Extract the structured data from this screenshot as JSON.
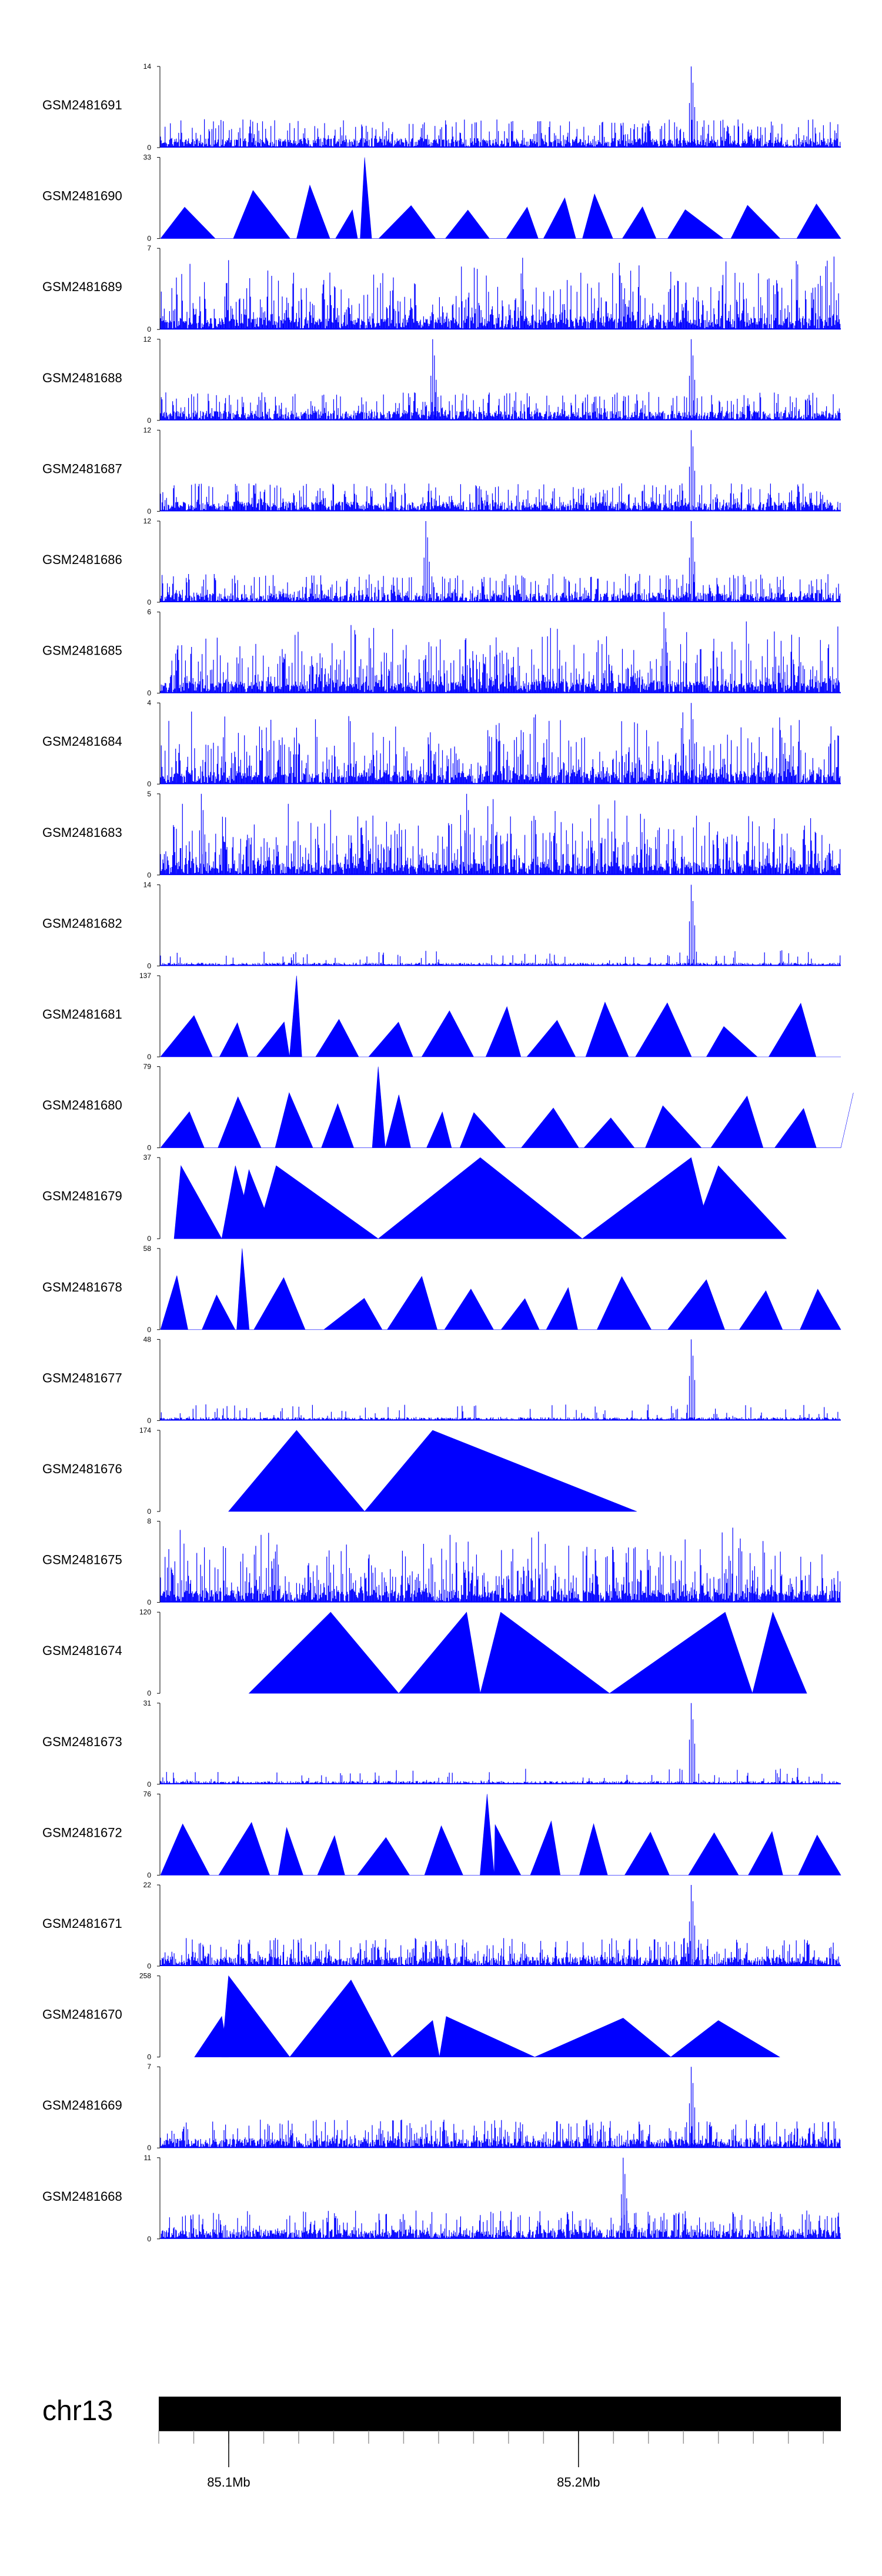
{
  "chart_data": {
    "type": "area",
    "title": "",
    "xlabel": "",
    "ylabel": "",
    "colors": {
      "signal": "#0000ff",
      "axis": "#000000",
      "ideogram": "#000000"
    },
    "tracks": [
      {
        "name": "GSM2481691",
        "ymax": "14",
        "ymin": "0",
        "pattern": "dense",
        "peak_positions": [
          0.78
        ],
        "seed": 11
      },
      {
        "name": "GSM2481690",
        "ymax": "33",
        "ymin": "0",
        "pattern": "triangles",
        "peak_positions": [
          0.3
        ],
        "seed": 12
      },
      {
        "name": "GSM2481689",
        "ymax": "7",
        "ymin": "0",
        "pattern": "noisy",
        "peak_positions": [],
        "seed": 13
      },
      {
        "name": "GSM2481688",
        "ymax": "12",
        "ymin": "0",
        "pattern": "dense",
        "peak_positions": [
          0.78,
          0.4
        ],
        "seed": 14
      },
      {
        "name": "GSM2481687",
        "ymax": "12",
        "ymin": "0",
        "pattern": "dense",
        "peak_positions": [
          0.78
        ],
        "seed": 15
      },
      {
        "name": "GSM2481686",
        "ymax": "12",
        "ymin": "0",
        "pattern": "dense",
        "peak_positions": [
          0.78,
          0.39
        ],
        "seed": 16
      },
      {
        "name": "GSM2481685",
        "ymax": "6",
        "ymin": "0",
        "pattern": "noisy",
        "peak_positions": [
          0.74
        ],
        "seed": 17
      },
      {
        "name": "GSM2481684",
        "ymax": "4",
        "ymin": "0",
        "pattern": "noisy",
        "peak_positions": [
          0.78
        ],
        "seed": 18
      },
      {
        "name": "GSM2481683",
        "ymax": "5",
        "ymin": "0",
        "pattern": "noisy",
        "peak_positions": [
          0.45,
          0.06
        ],
        "seed": 19
      },
      {
        "name": "GSM2481682",
        "ymax": "14",
        "ymin": "0",
        "pattern": "sparse",
        "peak_positions": [
          0.78
        ],
        "seed": 20
      },
      {
        "name": "GSM2481681",
        "ymax": "137",
        "ymin": "0",
        "pattern": "triangles",
        "peak_positions": [
          0.2
        ],
        "seed": 21
      },
      {
        "name": "GSM2481680",
        "ymax": "79",
        "ymin": "0",
        "pattern": "triangles",
        "peak_positions": [
          0.32
        ],
        "seed": 22
      },
      {
        "name": "GSM2481679",
        "ymax": "37",
        "ymin": "0",
        "pattern": "bigtri",
        "peak_positions": [],
        "seed": 23
      },
      {
        "name": "GSM2481678",
        "ymax": "58",
        "ymin": "0",
        "pattern": "triangles",
        "peak_positions": [
          0.12
        ],
        "seed": 24
      },
      {
        "name": "GSM2481677",
        "ymax": "48",
        "ymin": "0",
        "pattern": "sparse",
        "peak_positions": [
          0.78
        ],
        "seed": 25
      },
      {
        "name": "GSM2481676",
        "ymax": "174",
        "ymin": "0",
        "pattern": "bigtri2",
        "peak_positions": [],
        "seed": 26
      },
      {
        "name": "GSM2481675",
        "ymax": "8",
        "ymin": "0",
        "pattern": "noisy",
        "peak_positions": [],
        "seed": 27
      },
      {
        "name": "GSM2481674",
        "ymax": "120",
        "ymin": "0",
        "pattern": "bigtri3",
        "peak_positions": [],
        "seed": 28
      },
      {
        "name": "GSM2481673",
        "ymax": "31",
        "ymin": "0",
        "pattern": "sparse",
        "peak_positions": [
          0.78
        ],
        "seed": 29
      },
      {
        "name": "GSM2481672",
        "ymax": "76",
        "ymin": "0",
        "pattern": "triangles",
        "peak_positions": [
          0.48
        ],
        "seed": 30
      },
      {
        "name": "GSM2481671",
        "ymax": "22",
        "ymin": "0",
        "pattern": "dense",
        "peak_positions": [
          0.78
        ],
        "seed": 31
      },
      {
        "name": "GSM2481670",
        "ymax": "258",
        "ymin": "0",
        "pattern": "bigtri4",
        "peak_positions": [],
        "seed": 32
      },
      {
        "name": "GSM2481669",
        "ymax": "7",
        "ymin": "0",
        "pattern": "dense",
        "peak_positions": [
          0.78
        ],
        "seed": 33
      },
      {
        "name": "GSM2481668",
        "ymax": "11",
        "ymin": "0",
        "pattern": "dense",
        "peak_positions": [
          0.68
        ],
        "seed": 34
      }
    ],
    "genome_axis": {
      "chromosome": "chr13",
      "range_mb": [
        85.08,
        85.275
      ],
      "labeled_ticks": [
        {
          "position_mb": 85.1,
          "label": "85.1Mb"
        },
        {
          "position_mb": 85.2,
          "label": "85.2Mb"
        }
      ],
      "minor_tick_step_mb": 0.02
    }
  }
}
